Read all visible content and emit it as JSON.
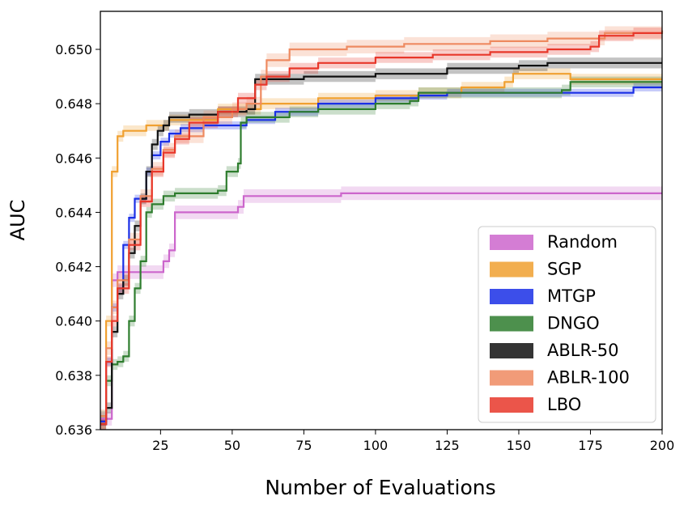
{
  "chart_data": {
    "type": "line",
    "xlabel": "Number of Evaluations",
    "ylabel": "AUC",
    "xlim": [
      4,
      200
    ],
    "ylim": [
      0.636,
      0.6514
    ],
    "xticks": [
      25,
      50,
      75,
      100,
      125,
      150,
      175,
      200
    ],
    "yticks": [
      0.636,
      0.638,
      0.64,
      0.642,
      0.644,
      0.646,
      0.648,
      0.65
    ],
    "xtick_labels": [
      "25",
      "50",
      "75",
      "100",
      "125",
      "150",
      "175",
      "200"
    ],
    "ytick_labels": [
      "0.636",
      "0.638",
      "0.640",
      "0.642",
      "0.644",
      "0.646",
      "0.648",
      "0.650"
    ],
    "grid": false,
    "legend_position": "lower-right",
    "series": [
      {
        "name": "Random",
        "color": "#cc66cc",
        "band": 0.00025,
        "points": [
          [
            4,
            0.6364
          ],
          [
            8,
            0.6415
          ],
          [
            10,
            0.6418
          ],
          [
            20,
            0.6418
          ],
          [
            26,
            0.6422
          ],
          [
            28,
            0.6426
          ],
          [
            30,
            0.644
          ],
          [
            40,
            0.644
          ],
          [
            52,
            0.6442
          ],
          [
            54,
            0.6446
          ],
          [
            80,
            0.6446
          ],
          [
            88,
            0.6447
          ],
          [
            200,
            0.6447
          ]
        ]
      },
      {
        "name": "SGP",
        "color": "#f0a030",
        "band": 0.0002,
        "points": [
          [
            4,
            0.6362
          ],
          [
            6,
            0.64
          ],
          [
            8,
            0.6455
          ],
          [
            10,
            0.6468
          ],
          [
            12,
            0.647
          ],
          [
            20,
            0.6472
          ],
          [
            28,
            0.6474
          ],
          [
            45,
            0.6478
          ],
          [
            60,
            0.648
          ],
          [
            80,
            0.6482
          ],
          [
            100,
            0.6483
          ],
          [
            115,
            0.6484
          ],
          [
            130,
            0.6486
          ],
          [
            145,
            0.6488
          ],
          [
            148,
            0.6491
          ],
          [
            167,
            0.6491
          ],
          [
            168,
            0.6489
          ],
          [
            200,
            0.6489
          ]
        ]
      },
      {
        "name": "MTGP",
        "color": "#1a2fe6",
        "band": 0.00015,
        "points": [
          [
            4,
            0.6363
          ],
          [
            6,
            0.6385
          ],
          [
            8,
            0.6405
          ],
          [
            10,
            0.6412
          ],
          [
            12,
            0.6428
          ],
          [
            14,
            0.6438
          ],
          [
            16,
            0.6445
          ],
          [
            20,
            0.6455
          ],
          [
            22,
            0.6461
          ],
          [
            25,
            0.6466
          ],
          [
            28,
            0.6469
          ],
          [
            32,
            0.6471
          ],
          [
            40,
            0.6472
          ],
          [
            55,
            0.6474
          ],
          [
            65,
            0.6477
          ],
          [
            80,
            0.648
          ],
          [
            100,
            0.6482
          ],
          [
            115,
            0.6483
          ],
          [
            125,
            0.6484
          ],
          [
            155,
            0.6484
          ],
          [
            185,
            0.6484
          ],
          [
            190,
            0.6486
          ],
          [
            200,
            0.6486
          ]
        ]
      },
      {
        "name": "DNGO",
        "color": "#2e7d2e",
        "band": 0.0002,
        "points": [
          [
            4,
            0.6365
          ],
          [
            6,
            0.6378
          ],
          [
            8,
            0.6384
          ],
          [
            10,
            0.6385
          ],
          [
            12,
            0.6387
          ],
          [
            14,
            0.64
          ],
          [
            16,
            0.6412
          ],
          [
            18,
            0.6422
          ],
          [
            20,
            0.644
          ],
          [
            22,
            0.6443
          ],
          [
            26,
            0.6446
          ],
          [
            30,
            0.6447
          ],
          [
            45,
            0.6448
          ],
          [
            48,
            0.6455
          ],
          [
            52,
            0.6458
          ],
          [
            53,
            0.6473
          ],
          [
            55,
            0.6475
          ],
          [
            70,
            0.6477
          ],
          [
            80,
            0.6478
          ],
          [
            100,
            0.648
          ],
          [
            112,
            0.6481
          ],
          [
            115,
            0.6484
          ],
          [
            165,
            0.6485
          ],
          [
            168,
            0.6488
          ],
          [
            200,
            0.6488
          ]
        ]
      },
      {
        "name": "ABLR-50",
        "color": "#111111",
        "band": 0.0002,
        "points": [
          [
            4,
            0.6362
          ],
          [
            6,
            0.6368
          ],
          [
            8,
            0.6396
          ],
          [
            10,
            0.641
          ],
          [
            12,
            0.6415
          ],
          [
            14,
            0.6425
          ],
          [
            16,
            0.6435
          ],
          [
            18,
            0.6445
          ],
          [
            20,
            0.6455
          ],
          [
            22,
            0.6465
          ],
          [
            24,
            0.647
          ],
          [
            26,
            0.6472
          ],
          [
            28,
            0.6475
          ],
          [
            35,
            0.6476
          ],
          [
            45,
            0.6477
          ],
          [
            55,
            0.6478
          ],
          [
            58,
            0.6489
          ],
          [
            75,
            0.649
          ],
          [
            100,
            0.6491
          ],
          [
            120,
            0.6491
          ],
          [
            125,
            0.6493
          ],
          [
            150,
            0.6494
          ],
          [
            160,
            0.6495
          ],
          [
            200,
            0.6495
          ]
        ]
      },
      {
        "name": "ABLR-100",
        "color": "#ee8a60",
        "band": 0.00025,
        "points": [
          [
            4,
            0.6365
          ],
          [
            6,
            0.639
          ],
          [
            8,
            0.6405
          ],
          [
            10,
            0.6415
          ],
          [
            14,
            0.643
          ],
          [
            18,
            0.6446
          ],
          [
            22,
            0.6456
          ],
          [
            26,
            0.6463
          ],
          [
            30,
            0.6468
          ],
          [
            40,
            0.6475
          ],
          [
            50,
            0.6478
          ],
          [
            55,
            0.648
          ],
          [
            60,
            0.649
          ],
          [
            62,
            0.6496
          ],
          [
            70,
            0.65
          ],
          [
            90,
            0.6501
          ],
          [
            110,
            0.6502
          ],
          [
            140,
            0.6503
          ],
          [
            160,
            0.6504
          ],
          [
            180,
            0.6506
          ],
          [
            200,
            0.6507
          ]
        ]
      },
      {
        "name": "LBO",
        "color": "#e8372a",
        "band": 0.0002,
        "points": [
          [
            4,
            0.6362
          ],
          [
            6,
            0.6385
          ],
          [
            8,
            0.64
          ],
          [
            10,
            0.6412
          ],
          [
            14,
            0.6428
          ],
          [
            18,
            0.6444
          ],
          [
            22,
            0.6455
          ],
          [
            26,
            0.6462
          ],
          [
            30,
            0.6467
          ],
          [
            35,
            0.6473
          ],
          [
            45,
            0.6477
          ],
          [
            52,
            0.6482
          ],
          [
            58,
            0.6487
          ],
          [
            62,
            0.649
          ],
          [
            70,
            0.6493
          ],
          [
            80,
            0.6495
          ],
          [
            100,
            0.6497
          ],
          [
            120,
            0.6498
          ],
          [
            140,
            0.6499
          ],
          [
            160,
            0.65
          ],
          [
            175,
            0.6501
          ],
          [
            178,
            0.6505
          ],
          [
            190,
            0.6506
          ],
          [
            200,
            0.6506
          ]
        ]
      }
    ]
  }
}
